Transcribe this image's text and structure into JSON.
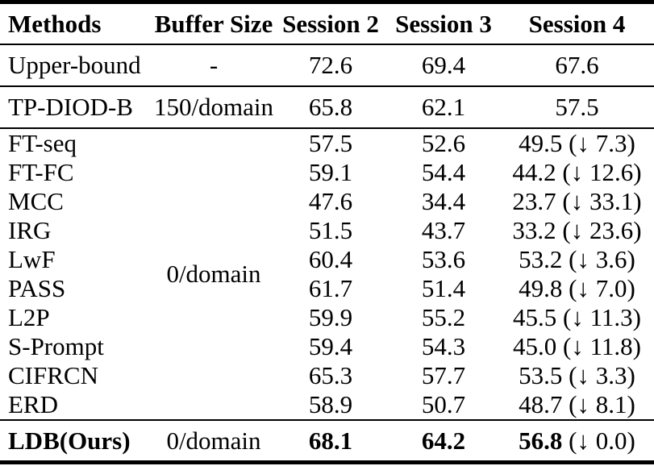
{
  "table": {
    "columns": [
      "Methods",
      "Buffer Size",
      "Session 2",
      "Session 3",
      "Session 4"
    ],
    "text_color": "#000000",
    "background_color": "#ffffff",
    "drop_arrow_icon": "↓",
    "sections": [
      {
        "name": "upper-bound",
        "rows": [
          {
            "method": "Upper-bound",
            "buffer": "-",
            "s2": "72.6",
            "s3": "69.4",
            "s4": "67.6",
            "s4_drop": "",
            "bold": false
          }
        ]
      },
      {
        "name": "buffer-baseline",
        "rows": [
          {
            "method": "TP-DIOD-B",
            "buffer": "150/domain",
            "s2": "65.8",
            "s3": "62.1",
            "s4": "57.5",
            "s4_drop": "",
            "bold": false
          }
        ]
      },
      {
        "name": "zero-buffer",
        "buffer_shared": "0/domain",
        "rows": [
          {
            "method": "FT-seq",
            "s2": "57.5",
            "s3": "52.6",
            "s4": "49.5",
            "s4_drop": "(↓ 7.3)",
            "bold": false
          },
          {
            "method": "FT-FC",
            "s2": "59.1",
            "s3": "54.4",
            "s4": "44.2",
            "s4_drop": "(↓ 12.6)",
            "bold": false
          },
          {
            "method": "MCC",
            "s2": "47.6",
            "s3": "34.4",
            "s4": "23.7",
            "s4_drop": "(↓ 33.1)",
            "bold": false
          },
          {
            "method": "IRG",
            "s2": "51.5",
            "s3": "43.7",
            "s4": "33.2",
            "s4_drop": "(↓ 23.6)",
            "bold": false
          },
          {
            "method": "LwF",
            "s2": "60.4",
            "s3": "53.6",
            "s4": "53.2",
            "s4_drop": "(↓ 3.6)",
            "bold": false
          },
          {
            "method": "PASS",
            "s2": "61.7",
            "s3": "51.4",
            "s4": "49.8",
            "s4_drop": "(↓ 7.0)",
            "bold": false
          },
          {
            "method": "L2P",
            "s2": "59.9",
            "s3": "55.2",
            "s4": "45.5",
            "s4_drop": "(↓ 11.3)",
            "bold": false
          },
          {
            "method": "S-Prompt",
            "s2": "59.4",
            "s3": "54.3",
            "s4": "45.0",
            "s4_drop": "(↓ 11.8)",
            "bold": false
          },
          {
            "method": "CIFRCN",
            "s2": "65.3",
            "s3": "57.7",
            "s4": "53.5",
            "s4_drop": "(↓ 3.3)",
            "bold": false
          },
          {
            "method": "ERD",
            "s2": "58.9",
            "s3": "50.7",
            "s4": "48.7",
            "s4_drop": "(↓ 8.1)",
            "bold": false
          }
        ]
      },
      {
        "name": "ours",
        "rows": [
          {
            "method": "LDB(Ours)",
            "buffer": "0/domain",
            "s2": "68.1",
            "s3": "64.2",
            "s4": "56.8",
            "s4_drop": "(↓ 0.0)",
            "bold": true
          }
        ]
      }
    ]
  }
}
